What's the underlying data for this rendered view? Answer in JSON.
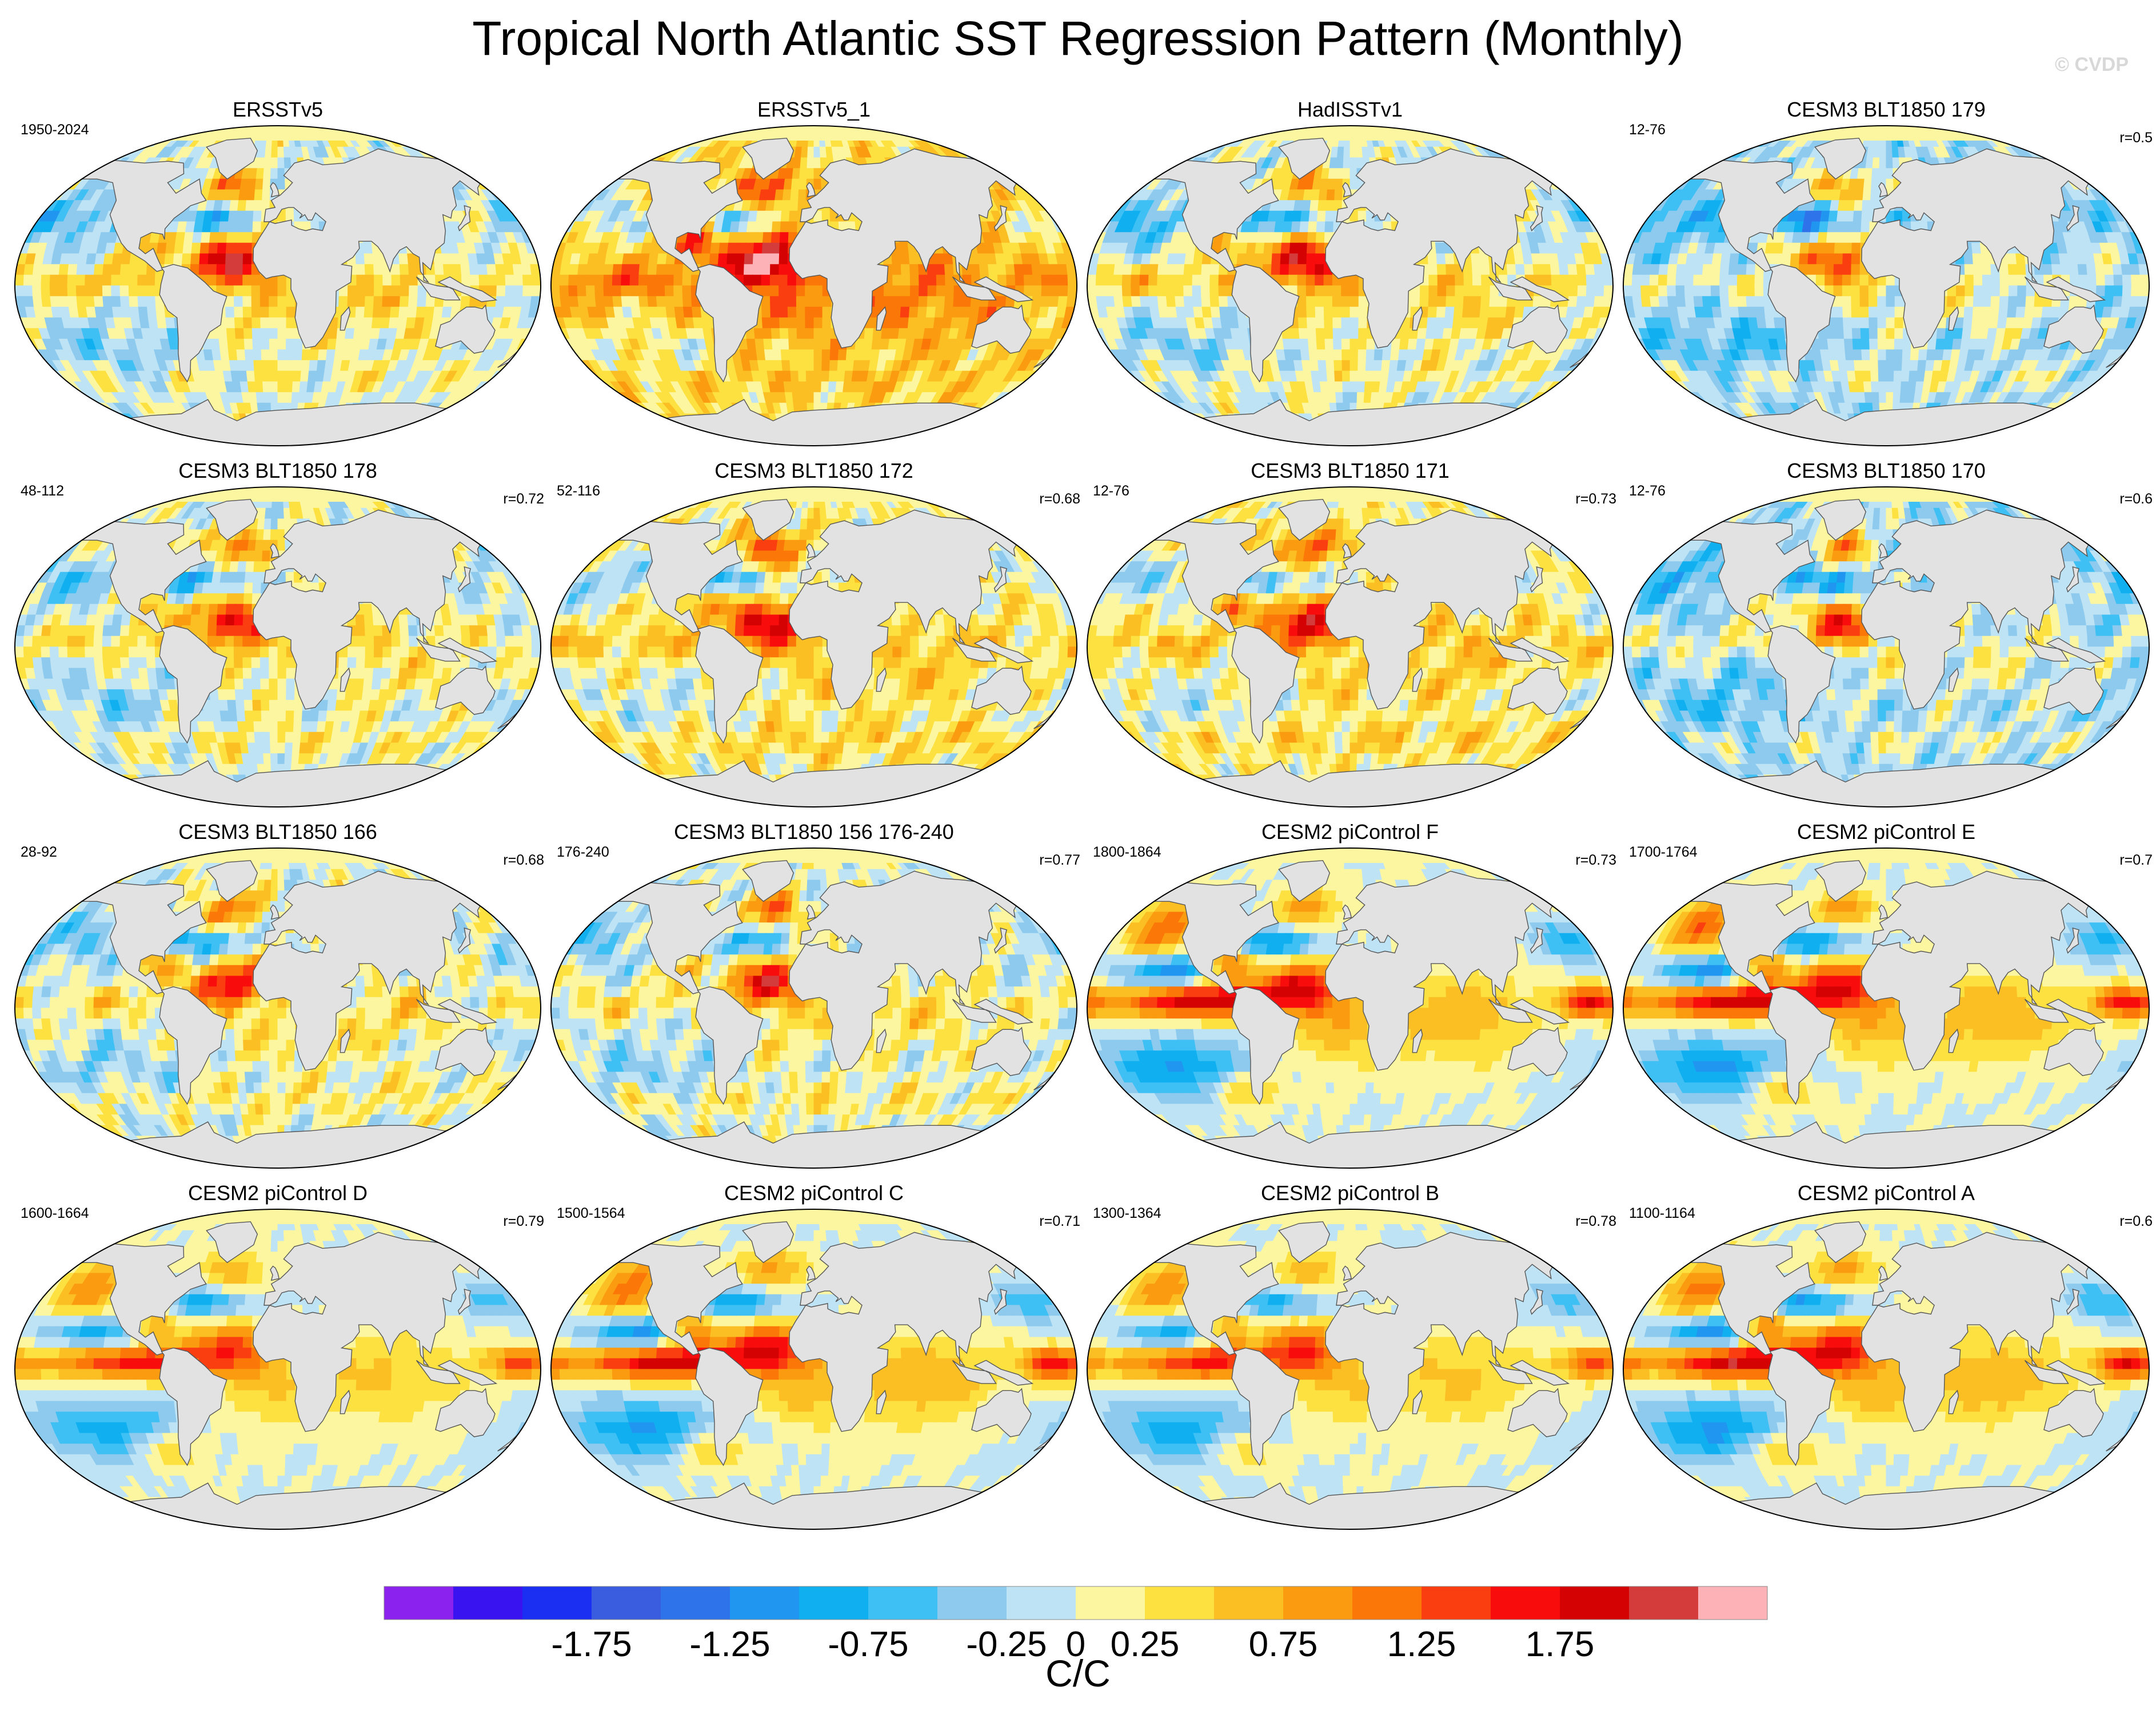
{
  "page": {
    "title": "Tropical North Atlantic SST Regression Pattern (Monthly)",
    "watermark": "© CVDP"
  },
  "chart_data": {
    "type": "heatmap",
    "title": "Tropical North Atlantic SST Regression Pattern (Monthly)",
    "projection": "Robinson (global)",
    "units": "C/C",
    "colorbar": {
      "levels": [
        -2.25,
        -2.0,
        -1.75,
        -1.5,
        -1.25,
        -1.0,
        -0.75,
        -0.5,
        -0.25,
        0,
        0.25,
        0.5,
        0.75,
        1.0,
        1.25,
        1.5,
        1.75,
        2.0,
        2.25,
        2.5
      ],
      "tick_labels": [
        "-1.75",
        "-1.25",
        "-0.75",
        "-0.25",
        "0",
        "0.25",
        "0.75",
        "1.25",
        "1.75"
      ],
      "colors": [
        "#8b22ee",
        "#3a14f0",
        "#1a2ff2",
        "#3a5de0",
        "#2f73ea",
        "#2196f0",
        "#10b0f0",
        "#3ec0f4",
        "#8dcaee",
        "#bde3f5",
        "#fdf6a0",
        "#fde140",
        "#fbbf24",
        "#fb9b10",
        "#fb7808",
        "#fb3e10",
        "#f80c0c",
        "#d40202",
        "#d43c3c",
        "#fcb2b6"
      ]
    },
    "panels": [
      {
        "title": "ERSSTv5",
        "period": "1950-2024",
        "corr": "",
        "pattern": "obs"
      },
      {
        "title": "ERSSTv5_1",
        "period": "",
        "corr": "",
        "pattern": "obs_warm"
      },
      {
        "title": "HadISSTv1",
        "period": "",
        "corr": "",
        "pattern": "obs"
      },
      {
        "title": "CESM3 BLT1850 179",
        "period": "12-76",
        "corr": "r=0.5",
        "pattern": "model_cool"
      },
      {
        "title": "CESM3 BLT1850 178",
        "period": "48-112",
        "corr": "r=0.72",
        "pattern": "model"
      },
      {
        "title": "CESM3 BLT1850 172",
        "period": "52-116",
        "corr": "r=0.68",
        "pattern": "model_warm"
      },
      {
        "title": "CESM3 BLT1850 171",
        "period": "12-76",
        "corr": "r=0.73",
        "pattern": "model_warm"
      },
      {
        "title": "CESM3 BLT1850 170",
        "period": "12-76",
        "corr": "r=0.6",
        "pattern": "model_cool"
      },
      {
        "title": "CESM3 BLT1850 166",
        "period": "28-92",
        "corr": "r=0.68",
        "pattern": "model"
      },
      {
        "title": "CESM3 BLT1850 156 176-240",
        "period": "176-240",
        "corr": "r=0.77",
        "pattern": "model"
      },
      {
        "title": "CESM2 piControl F",
        "period": "1800-1864",
        "corr": "r=0.73",
        "pattern": "cesm2"
      },
      {
        "title": "CESM2 piControl E",
        "period": "1700-1764",
        "corr": "r=0.7",
        "pattern": "cesm2"
      },
      {
        "title": "CESM2 piControl D",
        "period": "1600-1664",
        "corr": "r=0.79",
        "pattern": "cesm2_soft"
      },
      {
        "title": "CESM2 piControl C",
        "period": "1500-1564",
        "corr": "r=0.71",
        "pattern": "cesm2"
      },
      {
        "title": "CESM2 piControl B",
        "period": "1300-1364",
        "corr": "r=0.78",
        "pattern": "cesm2_soft"
      },
      {
        "title": "CESM2 piControl A",
        "period": "1100-1164",
        "corr": "r=0.6",
        "pattern": "cesm2"
      }
    ]
  }
}
